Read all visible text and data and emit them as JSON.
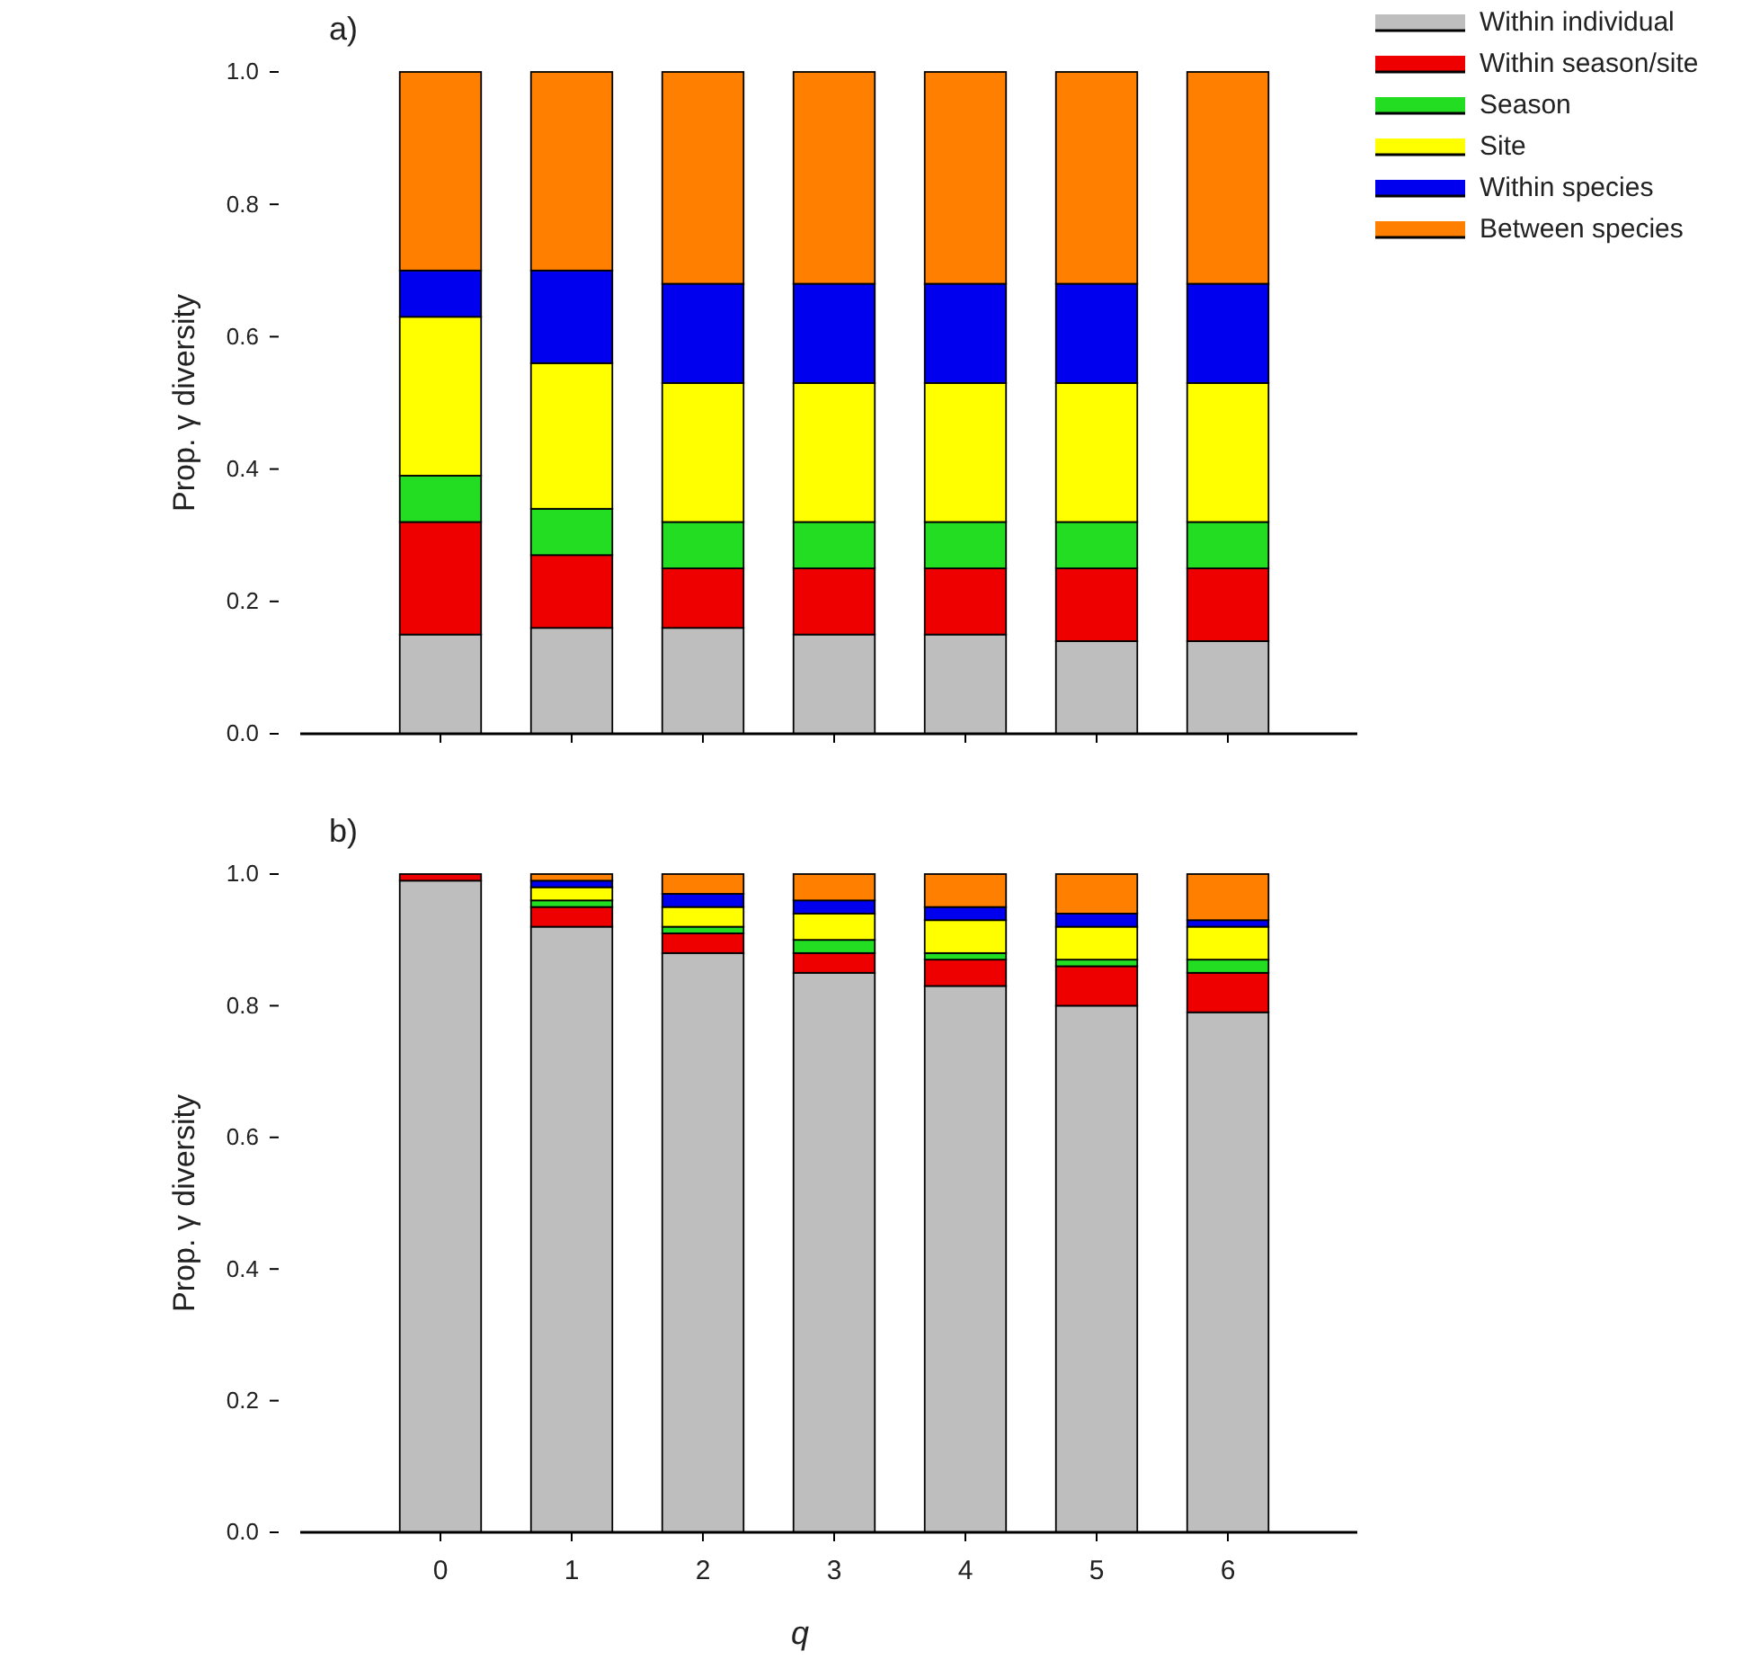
{
  "chart_data": [
    {
      "type": "bar",
      "stacked": true,
      "title": "a)",
      "ylabel": "Prop. γ diversity",
      "categories": [
        null,
        null,
        null,
        null,
        null,
        null,
        null
      ],
      "ylim": [
        0,
        1
      ],
      "yticks": [
        {
          "value": 0,
          "label": "0.0"
        },
        {
          "value": 0.2,
          "label": "0.2"
        },
        {
          "value": 0.4,
          "label": "0.4"
        },
        {
          "value": 0.6,
          "label": "0.6"
        },
        {
          "value": 0.8,
          "label": "0.8"
        },
        {
          "value": 1,
          "label": "1.0"
        }
      ],
      "tick_labels": "y",
      "legend": "top right",
      "grid": false,
      "series": [
        {
          "name": "Within individual",
          "color": "#bebebe",
          "values": [
            0.15,
            0.16,
            0.16,
            0.15,
            0.15,
            0.14,
            0.14
          ]
        },
        {
          "name": "Within season/site",
          "color": "#ee0000",
          "values": [
            0.17,
            0.11,
            0.09,
            0.1,
            0.1,
            0.11,
            0.11
          ]
        },
        {
          "name": "Season",
          "color": "#22dd22",
          "values": [
            0.07,
            0.07,
            0.07,
            0.07,
            0.07,
            0.07,
            0.07
          ]
        },
        {
          "name": "Site",
          "color": "#ffff00",
          "values": [
            0.24,
            0.22,
            0.21,
            0.21,
            0.21,
            0.21,
            0.21
          ]
        },
        {
          "name": "Within species",
          "color": "#0000ee",
          "values": [
            0.07,
            0.14,
            0.15,
            0.15,
            0.15,
            0.15,
            0.15
          ]
        },
        {
          "name": "Between species",
          "color": "#ff8000",
          "values": [
            0.3,
            0.3,
            0.32,
            0.32,
            0.32,
            0.32,
            0.32
          ]
        }
      ]
    },
    {
      "type": "bar",
      "stacked": true,
      "title": "b)",
      "ylabel": "Prop. γ diversity",
      "xlabel": "q",
      "categories": [
        "0",
        "1",
        "2",
        "3",
        "4",
        "5",
        "6"
      ],
      "ylim": [
        0,
        1
      ],
      "yticks": [
        {
          "value": 0,
          "label": "0.0"
        },
        {
          "value": 0.2,
          "label": "0.2"
        },
        {
          "value": 0.4,
          "label": "0.4"
        },
        {
          "value": 0.6,
          "label": "0.6"
        },
        {
          "value": 0.8,
          "label": "0.8"
        },
        {
          "value": 1,
          "label": "1.0"
        }
      ],
      "legend": false,
      "grid": false,
      "series": [
        {
          "color": "#bebebe",
          "values": [
            0.99,
            0.92,
            0.88,
            0.85,
            0.83,
            0.8,
            0.79
          ]
        },
        {
          "color": "#ee0000",
          "values": [
            0.01,
            0.03,
            0.03,
            0.03,
            0.04,
            0.06,
            0.06
          ]
        },
        {
          "color": "#22dd22",
          "values": [
            0,
            0.01,
            0.01,
            0.02,
            0.01,
            0.01,
            0.02
          ]
        },
        {
          "color": "#ffff00",
          "values": [
            0,
            0.02,
            0.03,
            0.04,
            0.05,
            0.05,
            0.05
          ]
        },
        {
          "color": "#0000ee",
          "values": [
            0,
            0.01,
            0.02,
            0.02,
            0.02,
            0.02,
            0.01
          ]
        },
        {
          "color": "#ff8000",
          "values": [
            0,
            0.01,
            0.03,
            0.04,
            0.05,
            0.06,
            0.07
          ]
        }
      ]
    }
  ]
}
